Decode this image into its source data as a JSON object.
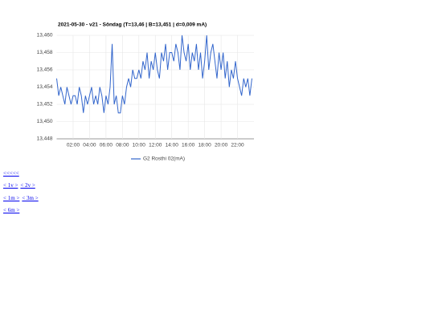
{
  "chart_data": {
    "type": "line",
    "title": "2021-05-30 - v21 - Söndag (T=13,46 | B=13,451 | d=0,009 mA)",
    "x": [
      0,
      0.25,
      0.5,
      0.75,
      1,
      1.25,
      1.5,
      1.75,
      2,
      2.25,
      2.5,
      2.75,
      3,
      3.25,
      3.5,
      3.75,
      4,
      4.25,
      4.5,
      4.75,
      5,
      5.25,
      5.5,
      5.75,
      6,
      6.25,
      6.5,
      6.75,
      7,
      7.25,
      7.5,
      7.75,
      8,
      8.25,
      8.5,
      8.75,
      9,
      9.25,
      9.5,
      9.75,
      10,
      10.25,
      10.5,
      10.75,
      11,
      11.25,
      11.5,
      11.75,
      12,
      12.25,
      12.5,
      12.75,
      13,
      13.25,
      13.5,
      13.75,
      14,
      14.25,
      14.5,
      14.75,
      15,
      15.25,
      15.5,
      15.75,
      16,
      16.25,
      16.5,
      16.75,
      17,
      17.25,
      17.5,
      17.75,
      18,
      18.25,
      18.5,
      18.75,
      19,
      19.25,
      19.5,
      19.75,
      20,
      20.25,
      20.5,
      20.75,
      21,
      21.25,
      21.5,
      21.75,
      22,
      22.25,
      22.5,
      22.75,
      23,
      23.25,
      23.5,
      23.75
    ],
    "series": [
      {
        "name": "G2 Rosthi 02(mA)",
        "color": "#3366cc",
        "values": [
          13.455,
          13.453,
          13.454,
          13.453,
          13.452,
          13.454,
          13.453,
          13.452,
          13.453,
          13.453,
          13.452,
          13.454,
          13.453,
          13.451,
          13.453,
          13.452,
          13.453,
          13.454,
          13.452,
          13.453,
          13.452,
          13.454,
          13.453,
          13.451,
          13.453,
          13.452,
          13.454,
          13.459,
          13.452,
          13.453,
          13.451,
          13.451,
          13.453,
          13.452,
          13.454,
          13.455,
          13.454,
          13.456,
          13.455,
          13.455,
          13.456,
          13.455,
          13.457,
          13.456,
          13.458,
          13.455,
          13.457,
          13.456,
          13.458,
          13.456,
          13.455,
          13.458,
          13.457,
          13.459,
          13.456,
          13.458,
          13.458,
          13.457,
          13.459,
          13.458,
          13.456,
          13.46,
          13.458,
          13.457,
          13.459,
          13.456,
          13.458,
          13.457,
          13.459,
          13.456,
          13.458,
          13.455,
          13.457,
          13.46,
          13.456,
          13.458,
          13.459,
          13.457,
          13.455,
          13.458,
          13.456,
          13.458,
          13.455,
          13.457,
          13.454,
          13.456,
          13.455,
          13.457,
          13.455,
          13.454,
          13.453,
          13.455,
          13.454,
          13.455,
          13.453,
          13.455
        ]
      }
    ],
    "xlim": [
      0,
      24
    ],
    "xticks": [
      {
        "value": 2,
        "label": "02:00"
      },
      {
        "value": 4,
        "label": "04:00"
      },
      {
        "value": 6,
        "label": "06:00"
      },
      {
        "value": 8,
        "label": "08:00"
      },
      {
        "value": 10,
        "label": "10:00"
      },
      {
        "value": 12,
        "label": "12:00"
      },
      {
        "value": 14,
        "label": "14:00"
      },
      {
        "value": 16,
        "label": "16:00"
      },
      {
        "value": 18,
        "label": "18:00"
      },
      {
        "value": 20,
        "label": "20:00"
      },
      {
        "value": 22,
        "label": "22:00"
      }
    ],
    "ylim": [
      13.448,
      13.46
    ],
    "yticks": [
      {
        "value": 13.448,
        "label": "13,448"
      },
      {
        "value": 13.45,
        "label": "13,450"
      },
      {
        "value": 13.452,
        "label": "13,452"
      },
      {
        "value": 13.454,
        "label": "13,454"
      },
      {
        "value": 13.456,
        "label": "13,456"
      },
      {
        "value": 13.458,
        "label": "13,458"
      },
      {
        "value": 13.46,
        "label": "13,460"
      }
    ],
    "grid": true,
    "legend": "bottom"
  },
  "links": [
    [
      "<<<<<"
    ],
    [
      "< 1v >",
      "< 2v >"
    ],
    [
      "< 1m >",
      "< 3m >"
    ],
    [
      "< 6m >"
    ]
  ]
}
